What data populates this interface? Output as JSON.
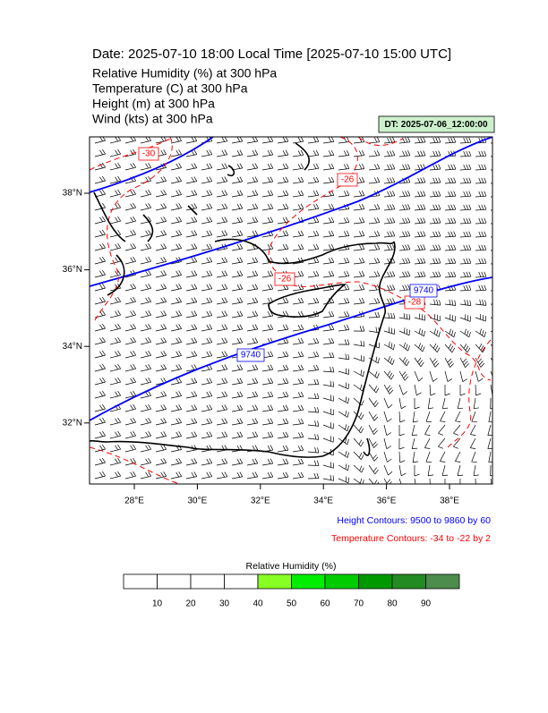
{
  "header": {
    "title": "Date: 2025-07-10  18:00 Local Time [2025-07-10  15:00 UTC]",
    "fields": [
      "Relative Humidity   (%)     at   300 hPa",
      "Temperature   (C)     at   300 hPa",
      "Height   (m)     at   300 hPa",
      "Wind   (kts)     at   300 hPa"
    ],
    "init_time": "DT: 2025-07-06_12:00:00"
  },
  "map": {
    "lat_ticks": [
      {
        "value": 38,
        "label": "38°N"
      },
      {
        "value": 36,
        "label": "36°N"
      },
      {
        "value": 34,
        "label": "34°N"
      },
      {
        "value": 32,
        "label": "32°N"
      }
    ],
    "lon_ticks": [
      {
        "value": 28,
        "label": "28°E"
      },
      {
        "value": 30,
        "label": "30°E"
      },
      {
        "value": 32,
        "label": "32°E"
      },
      {
        "value": 34,
        "label": "34°E"
      },
      {
        "value": 36,
        "label": "36°E"
      },
      {
        "value": 38,
        "label": "38°E"
      }
    ],
    "contour_labels": [
      "-30",
      "-26",
      "-26",
      "-28",
      "9740",
      "9740"
    ],
    "notes": [
      "Height Contours: 9500 to 9860 by 60",
      "Temperature Contours: -34 to -22 by 2"
    ]
  },
  "colorbar": {
    "title": "Relative Humidity  (%)",
    "levels": [
      10,
      20,
      30,
      40,
      50,
      60,
      70,
      80,
      90
    ],
    "colors": [
      "#ffffff",
      "#ffffff",
      "#ffffff",
      "#ffffff",
      "#88ff22",
      "#00ee00",
      "#00cc00",
      "#009900",
      "#228b22",
      "#4c8c4c"
    ]
  }
}
